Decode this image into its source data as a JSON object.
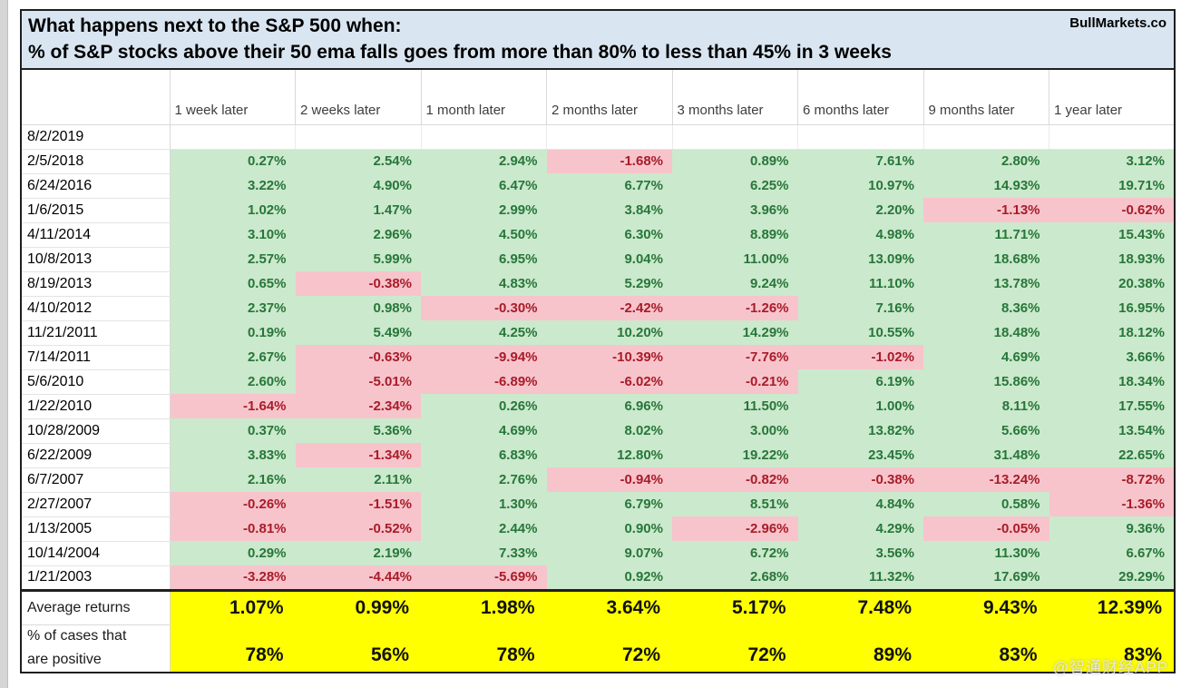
{
  "header": {
    "title_line1": "What happens next to the S&P 500 when:",
    "title_line2": "% of S&P stocks above their 50 ema falls goes from more than 80% to less than 45% in 3 weeks",
    "brand": "BullMarkets.co"
  },
  "watermark": "@智通财经APP",
  "colors": {
    "positive_bg": "#cbe9cc",
    "positive_text": "#27763a",
    "negative_bg": "#f7c4cc",
    "negative_text": "#a81c28",
    "summary_bg": "#ffff00",
    "title_bg": "#d9e5f1",
    "border_dark": "#1f1f1f",
    "grid_line": "#d9d9d9"
  },
  "chart_data": {
    "type": "table",
    "title": "What happens next to the S&P 500 when: % of S&P stocks above their 50 ema falls goes from more than 80% to less than 45% in 3 weeks",
    "columns": [
      "1 week later",
      "2 weeks later",
      "1 month later",
      "2 months later",
      "3 months later",
      "6 months later",
      "9 months later",
      "1 year later"
    ],
    "rows": [
      {
        "date": "8/2/2019",
        "values": [
          "",
          "",
          "",
          "",
          "",
          "",
          "",
          ""
        ]
      },
      {
        "date": "2/5/2018",
        "values": [
          "0.27%",
          "2.54%",
          "2.94%",
          "-1.68%",
          "0.89%",
          "7.61%",
          "2.80%",
          "3.12%"
        ]
      },
      {
        "date": "6/24/2016",
        "values": [
          "3.22%",
          "4.90%",
          "6.47%",
          "6.77%",
          "6.25%",
          "10.97%",
          "14.93%",
          "19.71%"
        ]
      },
      {
        "date": "1/6/2015",
        "values": [
          "1.02%",
          "1.47%",
          "2.99%",
          "3.84%",
          "3.96%",
          "2.20%",
          "-1.13%",
          "-0.62%"
        ]
      },
      {
        "date": "4/11/2014",
        "values": [
          "3.10%",
          "2.96%",
          "4.50%",
          "6.30%",
          "8.89%",
          "4.98%",
          "11.71%",
          "15.43%"
        ]
      },
      {
        "date": "10/8/2013",
        "values": [
          "2.57%",
          "5.99%",
          "6.95%",
          "9.04%",
          "11.00%",
          "13.09%",
          "18.68%",
          "18.93%"
        ]
      },
      {
        "date": "8/19/2013",
        "values": [
          "0.65%",
          "-0.38%",
          "4.83%",
          "5.29%",
          "9.24%",
          "11.10%",
          "13.78%",
          "20.38%"
        ]
      },
      {
        "date": "4/10/2012",
        "values": [
          "2.37%",
          "0.98%",
          "-0.30%",
          "-2.42%",
          "-1.26%",
          "7.16%",
          "8.36%",
          "16.95%"
        ]
      },
      {
        "date": "11/21/2011",
        "values": [
          "0.19%",
          "5.49%",
          "4.25%",
          "10.20%",
          "14.29%",
          "10.55%",
          "18.48%",
          "18.12%"
        ]
      },
      {
        "date": "7/14/2011",
        "values": [
          "2.67%",
          "-0.63%",
          "-9.94%",
          "-10.39%",
          "-7.76%",
          "-1.02%",
          "4.69%",
          "3.66%"
        ]
      },
      {
        "date": "5/6/2010",
        "values": [
          "2.60%",
          "-5.01%",
          "-6.89%",
          "-6.02%",
          "-0.21%",
          "6.19%",
          "15.86%",
          "18.34%"
        ]
      },
      {
        "date": "1/22/2010",
        "values": [
          "-1.64%",
          "-2.34%",
          "0.26%",
          "6.96%",
          "11.50%",
          "1.00%",
          "8.11%",
          "17.55%"
        ]
      },
      {
        "date": "10/28/2009",
        "values": [
          "0.37%",
          "5.36%",
          "4.69%",
          "8.02%",
          "3.00%",
          "13.82%",
          "5.66%",
          "13.54%"
        ]
      },
      {
        "date": "6/22/2009",
        "values": [
          "3.83%",
          "-1.34%",
          "6.83%",
          "12.80%",
          "19.22%",
          "23.45%",
          "31.48%",
          "22.65%"
        ]
      },
      {
        "date": "6/7/2007",
        "values": [
          "2.16%",
          "2.11%",
          "2.76%",
          "-0.94%",
          "-0.82%",
          "-0.38%",
          "-13.24%",
          "-8.72%"
        ]
      },
      {
        "date": "2/27/2007",
        "values": [
          "-0.26%",
          "-1.51%",
          "1.30%",
          "6.79%",
          "8.51%",
          "4.84%",
          "0.58%",
          "-1.36%"
        ]
      },
      {
        "date": "1/13/2005",
        "values": [
          "-0.81%",
          "-0.52%",
          "2.44%",
          "0.90%",
          "-2.96%",
          "4.29%",
          "-0.05%",
          "9.36%"
        ]
      },
      {
        "date": "10/14/2004",
        "values": [
          "0.29%",
          "2.19%",
          "7.33%",
          "9.07%",
          "6.72%",
          "3.56%",
          "11.30%",
          "6.67%"
        ]
      },
      {
        "date": "1/21/2003",
        "values": [
          "-3.28%",
          "-4.44%",
          "-5.69%",
          "0.92%",
          "2.68%",
          "11.32%",
          "17.69%",
          "29.29%"
        ]
      }
    ],
    "summary": {
      "average_label": "Average returns",
      "average_values": [
        "1.07%",
        "0.99%",
        "1.98%",
        "3.64%",
        "5.17%",
        "7.48%",
        "9.43%",
        "12.39%"
      ],
      "positive_label_line1": "% of cases that",
      "positive_label_line2": "are positive",
      "positive_values": [
        "78%",
        "56%",
        "78%",
        "72%",
        "72%",
        "89%",
        "83%",
        "83%"
      ]
    }
  }
}
